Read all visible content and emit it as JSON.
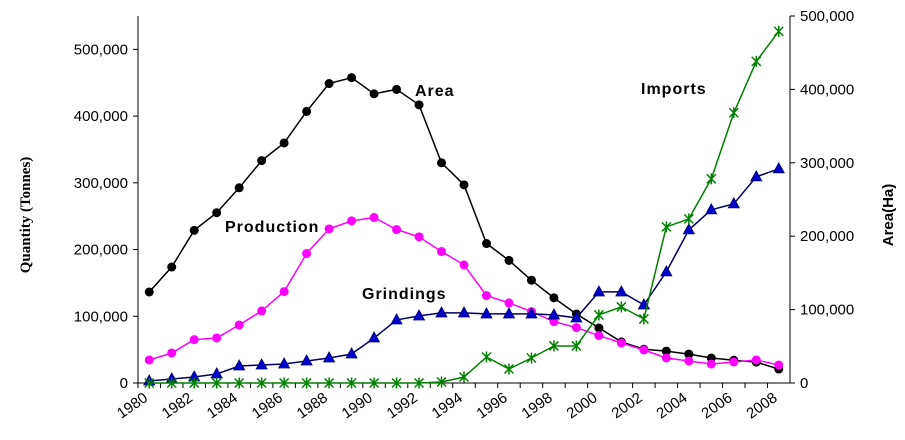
{
  "chart_data": {
    "type": "line",
    "y_label": "Quantity (Tonnes)",
    "y2_label": "Area(Ha)",
    "categories": [
      "1980",
      null,
      "1982",
      null,
      "1984",
      null,
      "1986",
      null,
      "1988",
      null,
      "1990",
      null,
      "1992",
      null,
      "1994",
      null,
      "1996",
      null,
      "1998",
      null,
      "2000",
      null,
      "2002",
      null,
      "2004",
      null,
      "2006",
      null,
      "2008"
    ],
    "ylim": [
      0,
      550000
    ],
    "yticks": [
      0,
      {
        "value": 100000,
        "label": "100,000"
      },
      {
        "value": 200000,
        "label": "200,000"
      },
      {
        "value": 300000,
        "label": "300,000"
      },
      {
        "value": 400000,
        "label": "400,000"
      },
      {
        "value": 500000,
        "label": "500,000"
      }
    ],
    "y2lim": [
      0,
      500000
    ],
    "y2ticks": [
      0,
      {
        "value": 100000,
        "label": "100,000"
      },
      {
        "value": 200000,
        "label": "200,000"
      },
      {
        "value": 300000,
        "label": "300,000"
      },
      {
        "value": 400000,
        "label": "400,000"
      },
      {
        "value": 500000,
        "label": "500,000"
      }
    ],
    "series": [
      {
        "name": "Area",
        "color": "#000000",
        "marker": "circle",
        "axis": "y2",
        "values": [
          124000,
          158000,
          208000,
          232000,
          266000,
          303000,
          327000,
          370000,
          408000,
          416000,
          394000,
          400000,
          379000,
          300000,
          270000,
          190000,
          167000,
          140000,
          116000,
          94000,
          75000,
          56000,
          46000,
          43500,
          39400,
          34000,
          31000,
          28500,
          19000
        ]
      },
      {
        "name": "Production",
        "color": "#ff00ff",
        "marker": "circle",
        "values": [
          34500,
          45000,
          65000,
          67500,
          87000,
          108000,
          137000,
          194000,
          231000,
          243000,
          248000,
          230000,
          219000,
          197000,
          177000,
          131000,
          120000,
          107000,
          92000,
          83000,
          71000,
          60000,
          49500,
          37500,
          33000,
          28500,
          31500,
          34500,
          27000
        ]
      },
      {
        "name": "Grindings",
        "color": "#0000cc",
        "line_color": "#000066",
        "marker": "triangle",
        "values": [
          3000,
          6000,
          9000,
          13500,
          25500,
          27000,
          28500,
          33000,
          37500,
          43500,
          67500,
          94500,
          100500,
          105000,
          105000,
          103500,
          103500,
          103500,
          102000,
          97500,
          136500,
          136500,
          117000,
          166500,
          229500,
          259500,
          268500,
          309000,
          321000
        ]
      },
      {
        "name": "Imports",
        "color": "#008000",
        "marker": "star",
        "values": [
          0,
          0,
          0,
          0,
          0,
          0,
          0,
          0,
          0,
          0,
          0,
          0,
          0,
          1500,
          9000,
          39000,
          21000,
          37500,
          55500,
          55500,
          102000,
          114000,
          96000,
          234000,
          246000,
          306000,
          405000,
          482000,
          527000
        ]
      }
    ]
  }
}
